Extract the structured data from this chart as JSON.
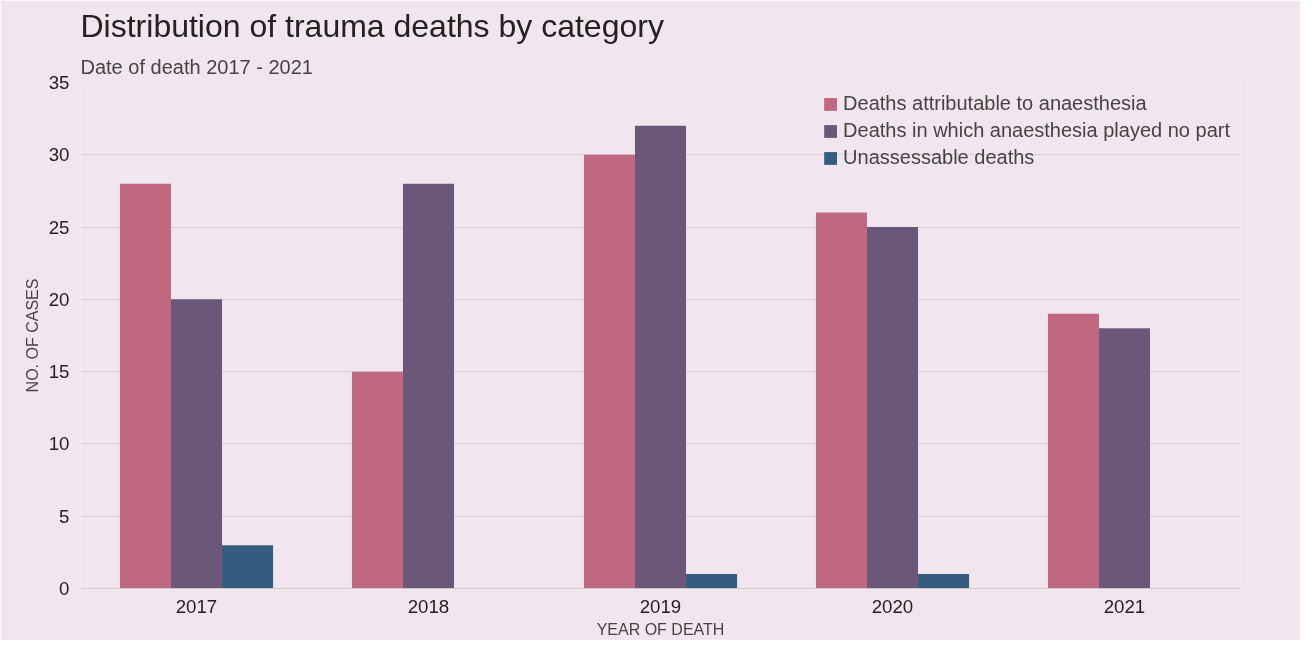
{
  "chart_data": {
    "type": "bar",
    "title": "Distribution of trauma deaths by category",
    "subtitle": "Date of death 2017 - 2021",
    "xlabel": "YEAR OF DEATH",
    "ylabel": "NO. OF CASES",
    "categories": [
      "2017",
      "2018",
      "2019",
      "2020",
      "2021"
    ],
    "series": [
      {
        "name": "Deaths attributable to anaesthesia",
        "color": "#c0687f",
        "values": [
          28,
          15,
          30,
          26,
          19
        ]
      },
      {
        "name": "Deaths in which anaesthesia played no part",
        "color": "#6b5878",
        "values": [
          20,
          28,
          32,
          25,
          18
        ]
      },
      {
        "name": "Unassessable deaths",
        "color": "#345c7e",
        "values": [
          3,
          0,
          1,
          1,
          0
        ]
      }
    ],
    "ylim": [
      0,
      35
    ],
    "yticks": [
      0,
      5,
      10,
      15,
      20,
      25,
      30,
      35
    ],
    "grid": "y",
    "legend": "top right"
  }
}
